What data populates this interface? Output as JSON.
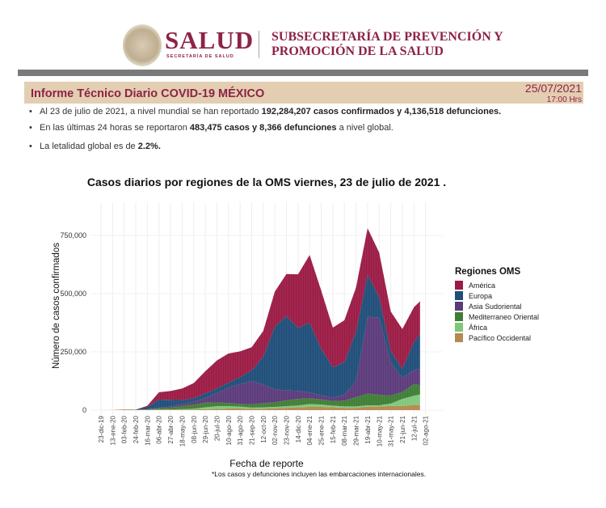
{
  "header": {
    "logo_text": "SALUD",
    "logo_subtitle": "SECRETARÍA DE SALUD",
    "subsecretaria_line1": "SUBSECRETARÍA DE PREVENCIÓN Y",
    "subsecretaria_line2": "PROMOCIÓN DE LA SALUD"
  },
  "report": {
    "title": "Informe Técnico Diario COVID-19 MÉXICO",
    "date": "25/07/2021",
    "time": "17:00 Hrs"
  },
  "bullets": [
    {
      "pre": "Al 23 de julio de 2021, a nivel mundial se han reportado ",
      "bold": "192,284,207 casos confirmados y 4,136,518 defunciones.",
      "post": ""
    },
    {
      "pre": "En las últimas 24 horas se reportaron ",
      "bold": "483,475 casos y 8,366 defunciones",
      "post": " a nivel global."
    },
    {
      "pre": "La letalidad global es de ",
      "bold": "2.2%.",
      "post": ""
    }
  ],
  "chart_data": {
    "type": "area",
    "stacked": true,
    "title": "Casos diarios por regiones de la OMS viernes, 23 de julio de 2021 .",
    "xlabel": "Fecha de reporte",
    "ylabel": "Número de casos confirmados",
    "footnote": "*Los casos y defunciones incluyen las embarcaciones internacionales.",
    "ylim": [
      0,
      850000
    ],
    "yticks": [
      0,
      250000,
      500000,
      750000
    ],
    "ytick_labels": [
      "0",
      "250,000",
      "500,000",
      "750,000"
    ],
    "xlim_days": [
      0,
      609
    ],
    "xtick_labels": [
      "23-dic-19",
      "13-ene-20",
      "03-feb-20",
      "24-feb-20",
      "16-mar-20",
      "06-abr-20",
      "27-abr-20",
      "18-may-20",
      "08-jun-20",
      "29-jun-20",
      "20-jul-20",
      "10-ago-20",
      "31-ago-20",
      "21-sep-20",
      "12-oct-20",
      "02-nov-20",
      "23-nov-20",
      "14-dic-20",
      "04-ene-21",
      "25-ene-21",
      "15-feb-21",
      "08-mar-21",
      "29-mar-21",
      "19-abr-21",
      "10-may-21",
      "31-may-21",
      "21-jun-21",
      "12-jul-21",
      "02-ago-21"
    ],
    "x_days_since_2019_12_23": [
      0,
      21,
      42,
      63,
      84,
      105,
      126,
      147,
      168,
      189,
      210,
      231,
      252,
      273,
      294,
      315,
      336,
      357,
      378,
      399,
      420,
      441,
      462,
      483,
      504,
      525,
      546,
      567,
      578
    ],
    "legend_title": "Regiones OMS",
    "legend_position": "right",
    "series": [
      {
        "name": "Pacífico Occidental",
        "color": "#b5894f",
        "values": [
          0,
          500,
          3000,
          1000,
          1000,
          2000,
          2000,
          2000,
          3000,
          4000,
          5000,
          7000,
          7000,
          5000,
          6000,
          8000,
          10000,
          12000,
          14000,
          14000,
          12000,
          10000,
          10000,
          15000,
          15000,
          18000,
          18000,
          22000,
          22000
        ]
      },
      {
        "name": "África",
        "color": "#7fc77a",
        "values": [
          0,
          0,
          0,
          0,
          200,
          1000,
          1000,
          2000,
          3000,
          8000,
          12000,
          10000,
          8000,
          6000,
          6000,
          6000,
          7000,
          8000,
          12000,
          10000,
          7000,
          6000,
          6000,
          6000,
          6000,
          10000,
          30000,
          40000,
          45000
        ]
      },
      {
        "name": "Mediterraneo Oriental",
        "color": "#3f7d36",
        "values": [
          0,
          0,
          0,
          500,
          2000,
          5000,
          8000,
          13000,
          18000,
          20000,
          16000,
          14000,
          12000,
          14000,
          18000,
          20000,
          25000,
          28000,
          25000,
          22000,
          20000,
          25000,
          40000,
          50000,
          45000,
          35000,
          30000,
          50000,
          40000
        ]
      },
      {
        "name": "Asia Sudoriental",
        "color": "#5b3a7a",
        "values": [
          0,
          0,
          0,
          0,
          500,
          2000,
          5000,
          8000,
          12000,
          20000,
          40000,
          65000,
          85000,
          100000,
          80000,
          55000,
          42000,
          35000,
          25000,
          17000,
          15000,
          25000,
          70000,
          330000,
          330000,
          140000,
          60000,
          60000,
          70000
        ]
      },
      {
        "name": "Europa",
        "color": "#1f4e79",
        "values": [
          0,
          0,
          0,
          500,
          10000,
          35000,
          28000,
          18000,
          15000,
          20000,
          20000,
          22000,
          30000,
          45000,
          120000,
          270000,
          320000,
          270000,
          300000,
          200000,
          130000,
          140000,
          210000,
          180000,
          90000,
          50000,
          40000,
          120000,
          150000
        ]
      },
      {
        "name": "América",
        "color": "#9b1b45",
        "values": [
          0,
          0,
          0,
          0,
          5000,
          32000,
          38000,
          50000,
          65000,
          95000,
          120000,
          125000,
          110000,
          100000,
          110000,
          150000,
          180000,
          230000,
          290000,
          250000,
          170000,
          180000,
          190000,
          200000,
          190000,
          170000,
          170000,
          150000,
          140000
        ]
      }
    ],
    "legend_order": [
      "América",
      "Europa",
      "Asia Sudoriental",
      "Mediterraneo Oriental",
      "África",
      "Pacífico Occidental"
    ]
  }
}
